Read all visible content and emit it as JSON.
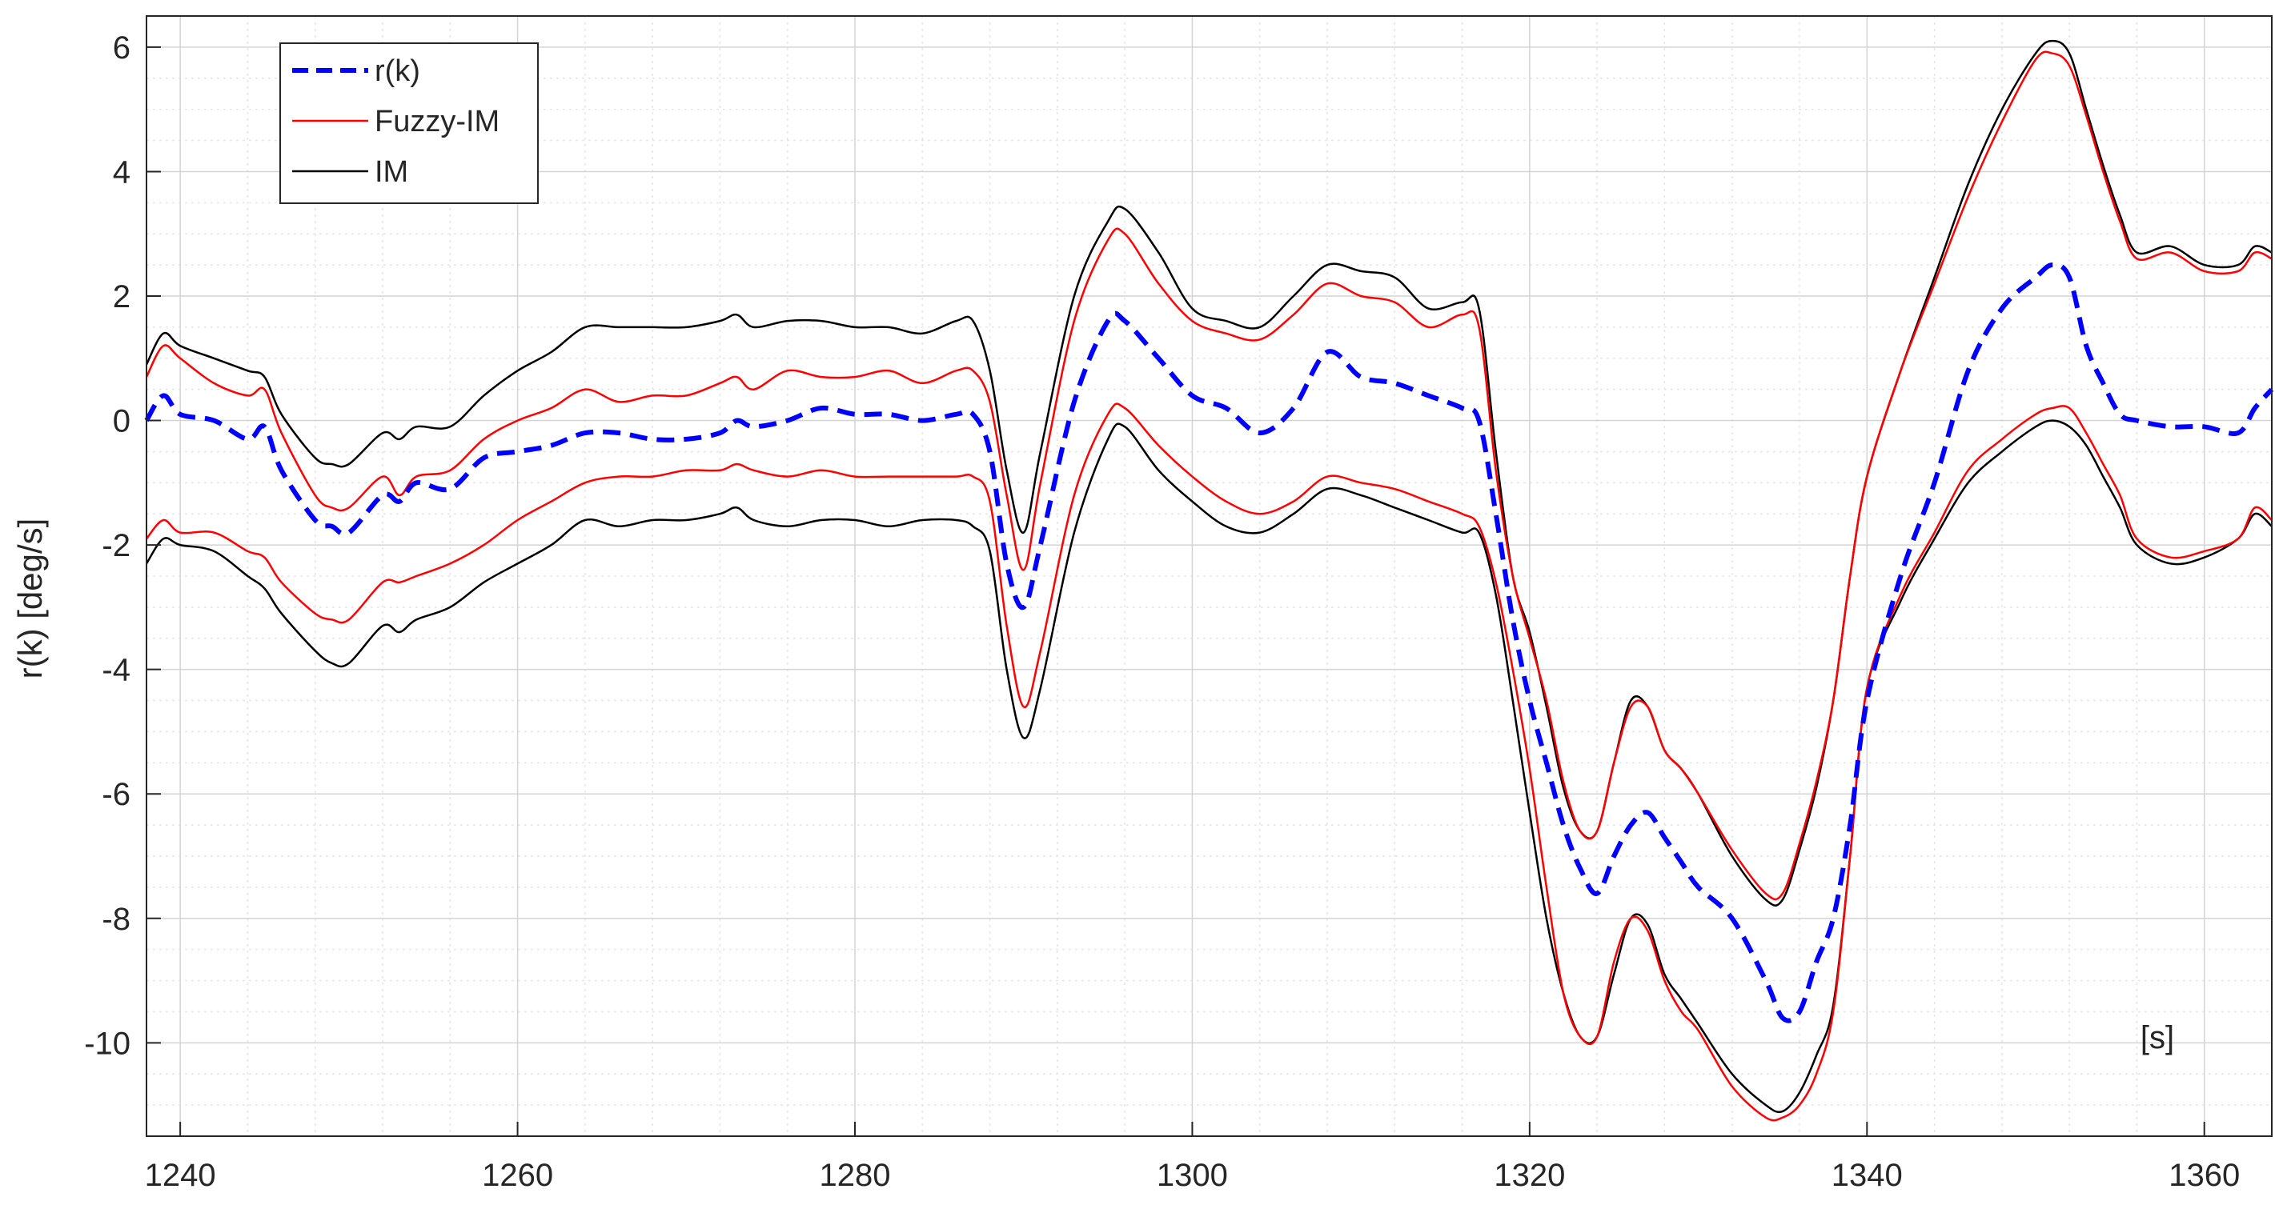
{
  "chart_data": {
    "type": "line",
    "title": "",
    "xlabel": "",
    "ylabel": "r(k) [deg/s]",
    "annotation": "[s]",
    "xlim": [
      1238,
      1364
    ],
    "ylim": [
      -11.5,
      6.5
    ],
    "x_ticks": [
      1240,
      1260,
      1280,
      1300,
      1320,
      1340,
      1360
    ],
    "x_tick_labels": [
      "1240",
      "1260",
      "1280",
      "1300",
      "1320",
      "1340",
      "1360"
    ],
    "y_ticks": [
      6,
      4,
      2,
      0,
      -2,
      -4,
      -6,
      -8,
      -10
    ],
    "y_tick_labels": [
      "6",
      "4",
      "2",
      "0",
      "-2",
      "-4",
      "-6",
      "-8",
      "-10"
    ],
    "grid": "on (major and minor)",
    "legend_placement": "top-left",
    "colors": {
      "r": "#0000ff",
      "fuzzy": "#ff0000",
      "im": "#000000"
    },
    "legend": [
      {
        "label": "r(k)",
        "series": "r"
      },
      {
        "label": "Fuzzy-IM",
        "series": "fuzzy"
      },
      {
        "label": "IM",
        "series": "im"
      }
    ],
    "series": [
      {
        "id": "r",
        "name": "r(k)",
        "style": "dashed",
        "x": [
          1238,
          1239,
          1240,
          1242,
          1244,
          1245,
          1246,
          1248,
          1249,
          1250,
          1252,
          1253,
          1254,
          1256,
          1258,
          1260,
          1262,
          1264,
          1266,
          1268,
          1270,
          1272,
          1273,
          1274,
          1276,
          1278,
          1280,
          1282,
          1284,
          1286,
          1287,
          1288,
          1289,
          1290,
          1291,
          1293,
          1295,
          1296,
          1298,
          1300,
          1302,
          1304,
          1306,
          1308,
          1310,
          1312,
          1314,
          1316,
          1317,
          1318,
          1319,
          1320,
          1321,
          1322,
          1323,
          1324,
          1325,
          1326,
          1327,
          1328,
          1329,
          1330,
          1332,
          1334,
          1335,
          1336,
          1337,
          1338,
          1339,
          1340,
          1342,
          1344,
          1346,
          1348,
          1350,
          1351,
          1352,
          1353,
          1354,
          1355,
          1356,
          1358,
          1360,
          1362,
          1363,
          1364
        ],
        "y": [
          0.0,
          0.4,
          0.1,
          0.0,
          -0.3,
          -0.1,
          -0.8,
          -1.6,
          -1.7,
          -1.8,
          -1.2,
          -1.3,
          -1.0,
          -1.1,
          -0.6,
          -0.5,
          -0.4,
          -0.2,
          -0.2,
          -0.3,
          -0.3,
          -0.2,
          0.0,
          -0.1,
          0.0,
          0.2,
          0.1,
          0.1,
          0.0,
          0.1,
          0.1,
          -0.5,
          -2.3,
          -3.0,
          -2.0,
          0.3,
          1.6,
          1.6,
          1.0,
          0.4,
          0.2,
          -0.2,
          0.2,
          1.1,
          0.7,
          0.6,
          0.4,
          0.2,
          0.0,
          -1.5,
          -3.2,
          -4.5,
          -5.5,
          -6.5,
          -7.2,
          -7.6,
          -7.0,
          -6.5,
          -6.3,
          -6.7,
          -7.1,
          -7.5,
          -8.0,
          -9.0,
          -9.6,
          -9.5,
          -8.7,
          -8.0,
          -6.5,
          -4.5,
          -2.5,
          -1.0,
          0.8,
          1.8,
          2.3,
          2.5,
          2.3,
          1.2,
          0.6,
          0.1,
          0.0,
          -0.1,
          -0.1,
          -0.2,
          0.2,
          0.5
        ]
      },
      {
        "id": "fuzzy_upper",
        "name": "Fuzzy-IM",
        "style": "solid",
        "color_key": "fuzzy",
        "x": [
          1238,
          1239,
          1240,
          1242,
          1244,
          1245,
          1246,
          1248,
          1249,
          1250,
          1252,
          1253,
          1254,
          1256,
          1258,
          1260,
          1262,
          1264,
          1266,
          1268,
          1270,
          1272,
          1273,
          1274,
          1276,
          1278,
          1280,
          1282,
          1284,
          1286,
          1287,
          1288,
          1289,
          1290,
          1291,
          1293,
          1295,
          1296,
          1298,
          1300,
          1302,
          1304,
          1306,
          1308,
          1310,
          1312,
          1314,
          1316,
          1317,
          1318,
          1319,
          1320,
          1321,
          1322,
          1323,
          1324,
          1325,
          1326,
          1327,
          1328,
          1329,
          1330,
          1332,
          1334,
          1335,
          1336,
          1337,
          1338,
          1339,
          1340,
          1342,
          1344,
          1346,
          1348,
          1350,
          1351,
          1352,
          1353,
          1354,
          1355,
          1356,
          1358,
          1360,
          1362,
          1363,
          1364
        ],
        "y": [
          0.7,
          1.2,
          1.0,
          0.6,
          0.4,
          0.5,
          -0.2,
          -1.2,
          -1.4,
          -1.4,
          -0.9,
          -1.2,
          -0.9,
          -0.8,
          -0.3,
          0.0,
          0.2,
          0.5,
          0.3,
          0.4,
          0.4,
          0.6,
          0.7,
          0.5,
          0.8,
          0.7,
          0.7,
          0.8,
          0.6,
          0.8,
          0.8,
          0.3,
          -1.2,
          -2.4,
          -1.0,
          1.6,
          2.9,
          3.0,
          2.2,
          1.6,
          1.4,
          1.3,
          1.7,
          2.2,
          2.0,
          1.9,
          1.5,
          1.7,
          1.5,
          -0.8,
          -2.5,
          -3.5,
          -4.5,
          -5.8,
          -6.6,
          -6.6,
          -5.5,
          -4.6,
          -4.6,
          -5.3,
          -5.6,
          -6.0,
          -6.9,
          -7.6,
          -7.6,
          -6.8,
          -5.8,
          -4.5,
          -2.5,
          -0.9,
          0.8,
          2.2,
          3.6,
          4.8,
          5.8,
          5.9,
          5.7,
          4.9,
          4.0,
          3.2,
          2.6,
          2.7,
          2.4,
          2.4,
          2.7,
          2.6
        ]
      },
      {
        "id": "fuzzy_lower",
        "name": "Fuzzy-IM",
        "style": "solid",
        "color_key": "fuzzy",
        "x": [
          1238,
          1239,
          1240,
          1242,
          1244,
          1245,
          1246,
          1248,
          1249,
          1250,
          1252,
          1253,
          1254,
          1256,
          1258,
          1260,
          1262,
          1264,
          1266,
          1268,
          1270,
          1272,
          1273,
          1274,
          1276,
          1278,
          1280,
          1282,
          1284,
          1286,
          1287,
          1288,
          1289,
          1290,
          1291,
          1293,
          1295,
          1296,
          1298,
          1300,
          1302,
          1304,
          1306,
          1308,
          1310,
          1312,
          1314,
          1316,
          1317,
          1318,
          1319,
          1320,
          1321,
          1322,
          1323,
          1324,
          1325,
          1326,
          1327,
          1328,
          1329,
          1330,
          1332,
          1334,
          1335,
          1336,
          1337,
          1338,
          1339,
          1340,
          1342,
          1344,
          1346,
          1348,
          1350,
          1351,
          1352,
          1353,
          1354,
          1355,
          1356,
          1358,
          1360,
          1362,
          1363,
          1364
        ],
        "y": [
          -1.9,
          -1.6,
          -1.8,
          -1.8,
          -2.1,
          -2.2,
          -2.6,
          -3.1,
          -3.2,
          -3.2,
          -2.6,
          -2.6,
          -2.5,
          -2.3,
          -2.0,
          -1.6,
          -1.3,
          -1.0,
          -0.9,
          -0.9,
          -0.8,
          -0.8,
          -0.7,
          -0.8,
          -0.9,
          -0.8,
          -0.9,
          -0.9,
          -0.9,
          -0.9,
          -0.9,
          -1.3,
          -3.3,
          -4.6,
          -3.7,
          -1.2,
          0.1,
          0.2,
          -0.4,
          -0.9,
          -1.3,
          -1.5,
          -1.3,
          -0.9,
          -1.0,
          -1.1,
          -1.3,
          -1.5,
          -1.7,
          -2.6,
          -4.0,
          -5.6,
          -7.5,
          -9.2,
          -9.9,
          -9.9,
          -8.7,
          -8.0,
          -8.2,
          -9.0,
          -9.5,
          -9.8,
          -10.7,
          -11.2,
          -11.2,
          -11.0,
          -10.5,
          -9.5,
          -7.0,
          -4.3,
          -2.8,
          -1.8,
          -0.8,
          -0.3,
          0.1,
          0.2,
          0.2,
          -0.2,
          -0.7,
          -1.2,
          -1.9,
          -2.2,
          -2.1,
          -1.9,
          -1.4,
          -1.6
        ]
      },
      {
        "id": "im_upper",
        "name": "IM",
        "style": "solid",
        "color_key": "im",
        "x": [
          1238,
          1239,
          1240,
          1242,
          1244,
          1245,
          1246,
          1248,
          1249,
          1250,
          1252,
          1253,
          1254,
          1256,
          1258,
          1260,
          1262,
          1264,
          1266,
          1268,
          1270,
          1272,
          1273,
          1274,
          1276,
          1278,
          1280,
          1282,
          1284,
          1286,
          1287,
          1288,
          1289,
          1290,
          1291,
          1293,
          1295,
          1296,
          1298,
          1300,
          1302,
          1304,
          1306,
          1308,
          1310,
          1312,
          1314,
          1316,
          1317,
          1318,
          1319,
          1320,
          1321,
          1322,
          1323,
          1324,
          1325,
          1326,
          1327,
          1328,
          1329,
          1330,
          1332,
          1334,
          1335,
          1336,
          1337,
          1338,
          1339,
          1340,
          1342,
          1344,
          1346,
          1348,
          1350,
          1351,
          1352,
          1353,
          1354,
          1355,
          1356,
          1358,
          1360,
          1362,
          1363,
          1364
        ],
        "y": [
          0.9,
          1.4,
          1.2,
          1.0,
          0.8,
          0.7,
          0.1,
          -0.6,
          -0.7,
          -0.7,
          -0.2,
          -0.3,
          -0.1,
          -0.1,
          0.4,
          0.8,
          1.1,
          1.5,
          1.5,
          1.5,
          1.5,
          1.6,
          1.7,
          1.5,
          1.6,
          1.6,
          1.5,
          1.5,
          1.4,
          1.6,
          1.6,
          0.8,
          -0.8,
          -1.8,
          -0.5,
          2.0,
          3.2,
          3.4,
          2.7,
          1.8,
          1.6,
          1.5,
          2.0,
          2.5,
          2.4,
          2.3,
          1.8,
          1.9,
          1.8,
          -0.5,
          -2.5,
          -3.4,
          -4.6,
          -5.9,
          -6.6,
          -6.6,
          -5.5,
          -4.5,
          -4.6,
          -5.3,
          -5.6,
          -6.0,
          -7.0,
          -7.7,
          -7.7,
          -6.9,
          -5.9,
          -4.5,
          -2.5,
          -0.9,
          0.8,
          2.3,
          3.8,
          5.0,
          5.9,
          6.1,
          5.9,
          5.0,
          4.1,
          3.3,
          2.7,
          2.8,
          2.5,
          2.5,
          2.8,
          2.7
        ]
      },
      {
        "id": "im_lower",
        "name": "IM",
        "style": "solid",
        "color_key": "im",
        "x": [
          1238,
          1239,
          1240,
          1242,
          1244,
          1245,
          1246,
          1248,
          1249,
          1250,
          1252,
          1253,
          1254,
          1256,
          1258,
          1260,
          1262,
          1264,
          1266,
          1268,
          1270,
          1272,
          1273,
          1274,
          1276,
          1278,
          1280,
          1282,
          1284,
          1286,
          1287,
          1288,
          1289,
          1290,
          1291,
          1293,
          1295,
          1296,
          1298,
          1300,
          1302,
          1304,
          1306,
          1308,
          1310,
          1312,
          1314,
          1316,
          1317,
          1318,
          1319,
          1320,
          1321,
          1322,
          1323,
          1324,
          1325,
          1326,
          1327,
          1328,
          1329,
          1330,
          1332,
          1334,
          1335,
          1336,
          1337,
          1338,
          1339,
          1340,
          1342,
          1344,
          1346,
          1348,
          1350,
          1351,
          1352,
          1353,
          1354,
          1355,
          1356,
          1358,
          1360,
          1362,
          1363,
          1364
        ],
        "y": [
          -2.3,
          -1.9,
          -2.0,
          -2.1,
          -2.5,
          -2.7,
          -3.1,
          -3.7,
          -3.9,
          -3.9,
          -3.3,
          -3.4,
          -3.2,
          -3.0,
          -2.6,
          -2.3,
          -2.0,
          -1.6,
          -1.7,
          -1.6,
          -1.6,
          -1.5,
          -1.4,
          -1.6,
          -1.7,
          -1.6,
          -1.6,
          -1.7,
          -1.6,
          -1.6,
          -1.7,
          -2.1,
          -4.0,
          -5.1,
          -4.3,
          -1.8,
          -0.3,
          -0.1,
          -0.8,
          -1.3,
          -1.7,
          -1.8,
          -1.5,
          -1.1,
          -1.2,
          -1.4,
          -1.6,
          -1.8,
          -1.8,
          -2.8,
          -4.5,
          -6.3,
          -8.0,
          -9.2,
          -9.9,
          -9.9,
          -8.9,
          -8.0,
          -8.1,
          -8.9,
          -9.3,
          -9.7,
          -10.5,
          -11.0,
          -11.1,
          -10.8,
          -10.2,
          -9.4,
          -7.0,
          -4.3,
          -2.9,
          -1.9,
          -1.0,
          -0.5,
          -0.1,
          0.0,
          -0.1,
          -0.4,
          -0.9,
          -1.4,
          -2.0,
          -2.3,
          -2.2,
          -1.9,
          -1.5,
          -1.7
        ]
      }
    ]
  }
}
